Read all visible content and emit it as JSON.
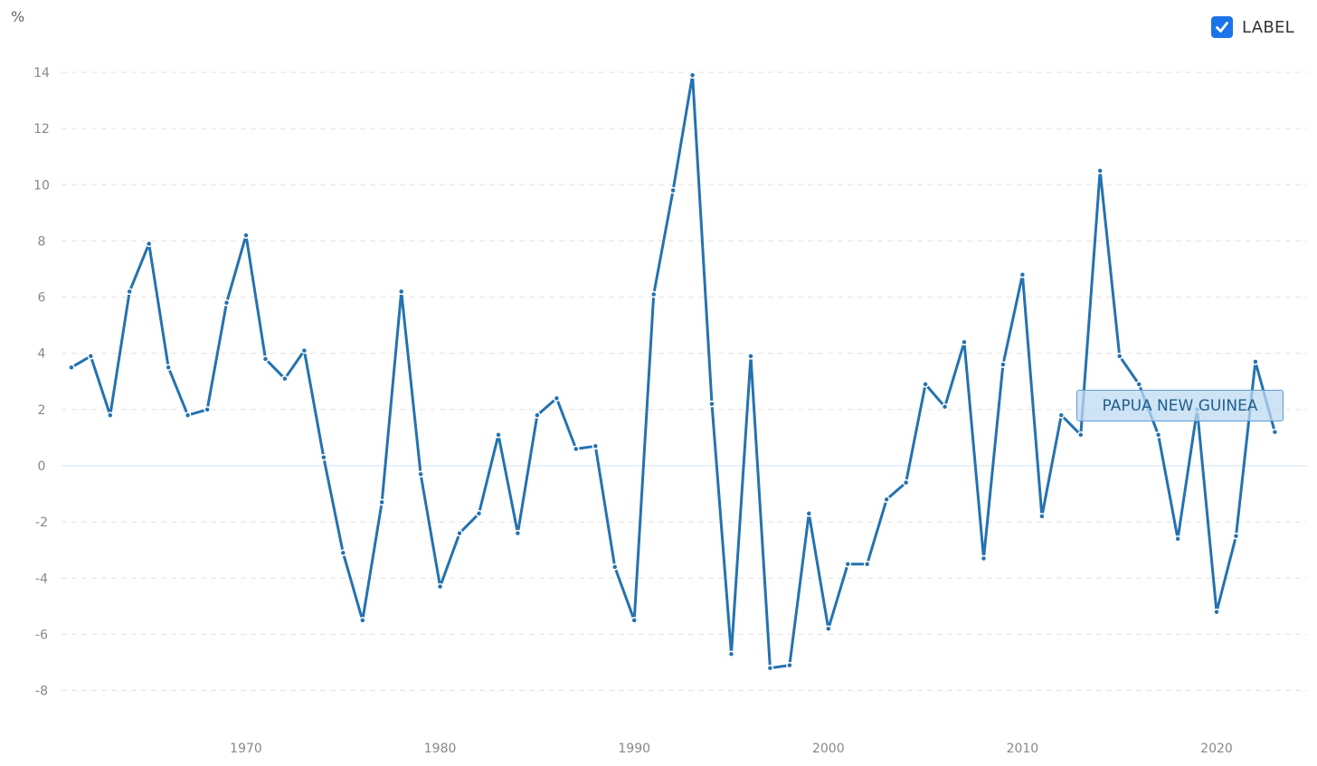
{
  "chart_data": {
    "type": "line",
    "title": "",
    "xlabel": "",
    "ylabel": "%",
    "ylim": [
      -9,
      14.5
    ],
    "xlim": [
      1960.5,
      2023.8
    ],
    "y_ticks": [
      "14",
      "12",
      "10",
      "8",
      "6",
      "4",
      "2",
      "0",
      "-2",
      "-4",
      "-6",
      "-8"
    ],
    "x_ticks": [
      "1970",
      "1980",
      "1990",
      "2000",
      "2010",
      "2020"
    ],
    "grid": true,
    "legend": "top-right",
    "series": [
      {
        "name": "PAPUA NEW GUINEA",
        "color": "#2472b0",
        "x": [
          1961,
          1962,
          1963,
          1964,
          1965,
          1966,
          1967,
          1968,
          1969,
          1970,
          1971,
          1972,
          1973,
          1974,
          1975,
          1976,
          1977,
          1978,
          1979,
          1980,
          1981,
          1982,
          1983,
          1984,
          1985,
          1986,
          1987,
          1988,
          1989,
          1990,
          1991,
          1992,
          1993,
          1994,
          1995,
          1996,
          1997,
          1998,
          1999,
          2000,
          2001,
          2002,
          2003,
          2004,
          2005,
          2006,
          2007,
          2008,
          2009,
          2010,
          2011,
          2012,
          2013,
          2014,
          2015,
          2016,
          2017,
          2018,
          2019,
          2020,
          2021,
          2022,
          2023
        ],
        "values": [
          3.5,
          3.9,
          1.8,
          6.2,
          7.9,
          3.5,
          1.8,
          2.0,
          5.8,
          8.2,
          3.8,
          3.1,
          4.1,
          0.3,
          -3.1,
          -5.5,
          -1.3,
          6.2,
          -0.3,
          -4.3,
          -2.4,
          -1.7,
          1.1,
          -2.4,
          1.8,
          2.4,
          0.6,
          0.7,
          -3.6,
          -5.5,
          6.1,
          9.8,
          13.9,
          2.2,
          -6.7,
          3.9,
          -7.2,
          -7.1,
          -1.7,
          -5.8,
          -3.5,
          -3.5,
          -1.2,
          -0.6,
          2.9,
          2.1,
          4.4,
          -3.3,
          3.6,
          6.8,
          -1.8,
          1.8,
          1.1,
          10.5,
          3.9,
          2.9,
          1.1,
          -2.6,
          2.0,
          -5.2,
          -2.5,
          3.7,
          1.2
        ]
      }
    ]
  },
  "legend": {
    "checkbox_label": "LABEL",
    "checked": true,
    "series_tag": "PAPUA NEW GUINEA"
  }
}
